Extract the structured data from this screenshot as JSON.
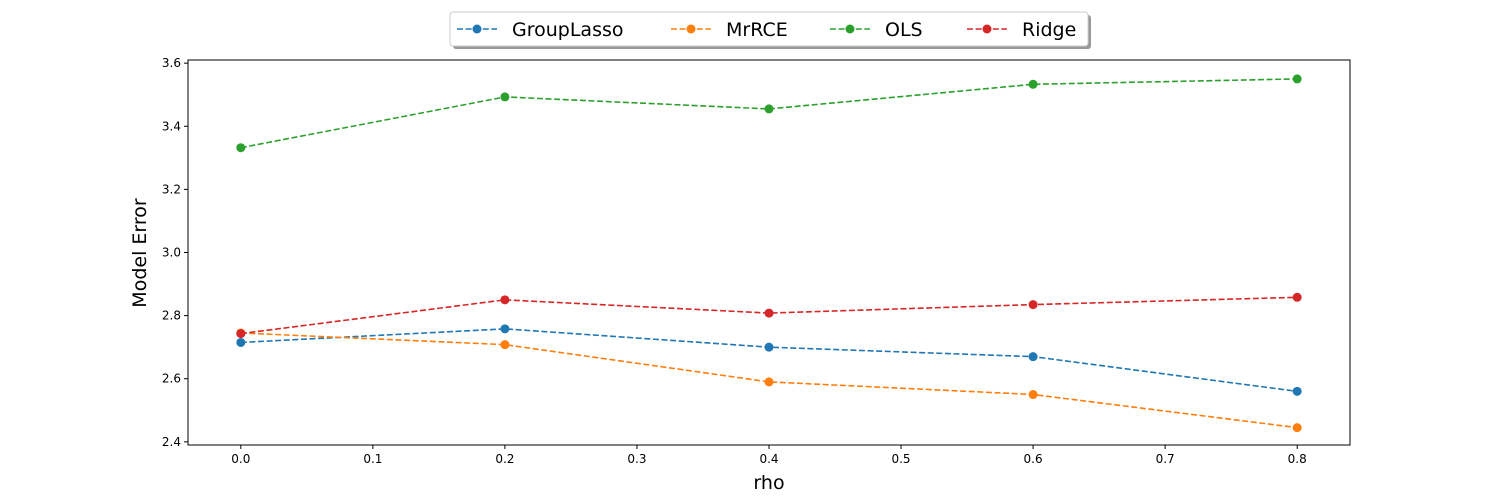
{
  "chart_data": {
    "type": "line",
    "xlabel": "rho",
    "ylabel": "Model Error",
    "x": [
      0.0,
      0.2,
      0.4,
      0.6,
      0.8
    ],
    "xlim": [
      -0.04,
      0.84
    ],
    "ylim": [
      2.39,
      3.61
    ],
    "xticks": [
      "0.0",
      "0.1",
      "0.2",
      "0.3",
      "0.4",
      "0.5",
      "0.6",
      "0.7",
      "0.8"
    ],
    "yticks": [
      "2.4",
      "2.6",
      "2.8",
      "3.0",
      "3.2",
      "3.4",
      "3.6"
    ],
    "grid": false,
    "legend_position": "top-center",
    "line_style": "dashed",
    "marker": "circle",
    "series": [
      {
        "name": "GroupLasso",
        "color": "#1f77b4",
        "values": [
          2.715,
          2.758,
          2.7,
          2.67,
          2.56
        ]
      },
      {
        "name": "MrRCE",
        "color": "#ff7f0e",
        "values": [
          2.745,
          2.708,
          2.59,
          2.55,
          2.445
        ]
      },
      {
        "name": "OLS",
        "color": "#2ca02c",
        "values": [
          3.332,
          3.493,
          3.455,
          3.533,
          3.55
        ]
      },
      {
        "name": "Ridge",
        "color": "#d62728",
        "values": [
          2.743,
          2.85,
          2.808,
          2.835,
          2.858
        ]
      }
    ]
  }
}
